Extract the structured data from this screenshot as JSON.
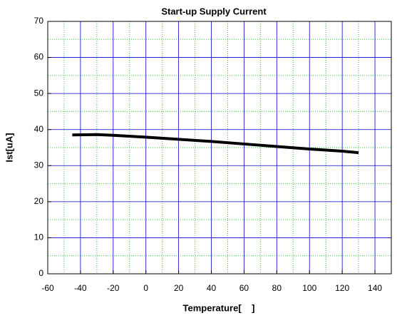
{
  "chart_data": {
    "type": "line",
    "title": "Start-up Supply Current",
    "xlabel": "Temperature[    ]",
    "ylabel": "Ist[uA]",
    "x": [
      -45,
      -30,
      -20,
      0,
      20,
      40,
      60,
      80,
      100,
      120,
      130
    ],
    "series": [
      {
        "name": "Ist",
        "color": "#000000",
        "values": [
          38.5,
          38.6,
          38.4,
          37.9,
          37.3,
          36.7,
          36.0,
          35.3,
          34.6,
          34.0,
          33.6
        ]
      }
    ],
    "xlim": [
      -60,
      150
    ],
    "xticks": [
      -60,
      -40,
      -20,
      0,
      20,
      40,
      60,
      80,
      100,
      120,
      140
    ],
    "ylim": [
      0,
      70
    ],
    "yticks": [
      0,
      10,
      20,
      30,
      40,
      50,
      60,
      70
    ],
    "xminorticks": [
      -50,
      -30,
      -10,
      10,
      30,
      50,
      70,
      90,
      110,
      130
    ],
    "yminorticks": [
      5,
      15,
      25,
      35,
      45,
      55,
      65
    ],
    "grid": true,
    "grid_color": "#0000cc",
    "minor_grid_color": "#33cc33"
  }
}
